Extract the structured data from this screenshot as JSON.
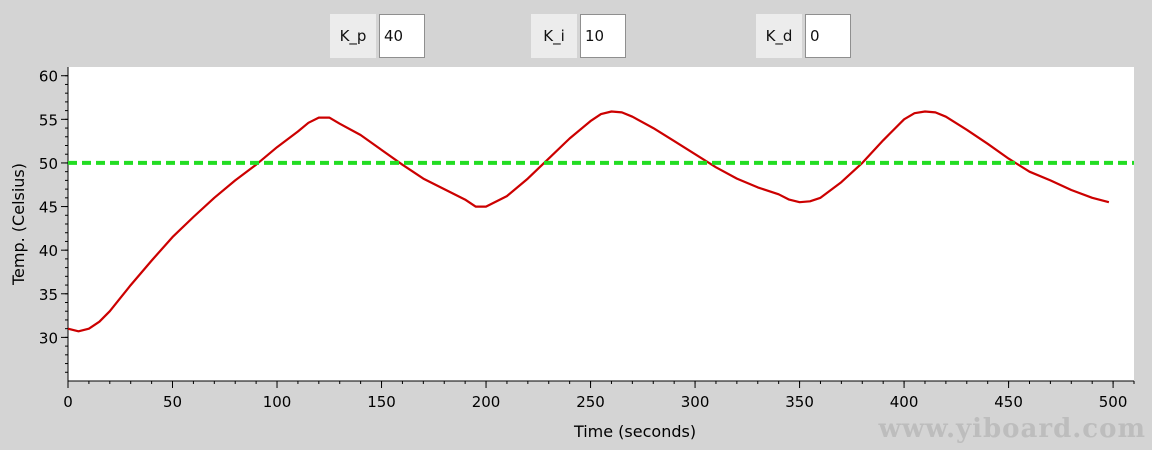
{
  "controls": [
    {
      "label": "K_p",
      "value": "40"
    },
    {
      "label": "K_i",
      "value": "10"
    },
    {
      "label": "K_d",
      "value": "0"
    }
  ],
  "watermark": "www.yiboard.com",
  "colors": {
    "background": "#d4d4d4",
    "plot_area": "#ffffff",
    "temperature": "#cc0000",
    "setpoint": "#22dd22"
  },
  "chart_data": {
    "type": "line",
    "title": "",
    "xlabel": "Time (seconds)",
    "ylabel": "Temp. (Celsius)",
    "xlim": [
      0,
      510
    ],
    "ylim": [
      25,
      61
    ],
    "xticks": [
      0,
      50,
      100,
      150,
      200,
      250,
      300,
      350,
      400,
      450,
      500
    ],
    "yticks": [
      30,
      35,
      40,
      45,
      50,
      55,
      60
    ],
    "grid": false,
    "series": [
      {
        "style": "solid",
        "color": "#cc0000",
        "x": [
          0,
          5,
          10,
          15,
          20,
          25,
          30,
          40,
          50,
          60,
          70,
          80,
          90,
          100,
          110,
          115,
          120,
          125,
          130,
          140,
          150,
          160,
          170,
          180,
          190,
          195,
          200,
          210,
          220,
          230,
          240,
          250,
          255,
          260,
          265,
          270,
          280,
          290,
          300,
          310,
          320,
          330,
          340,
          345,
          350,
          355,
          360,
          370,
          380,
          390,
          400,
          405,
          410,
          415,
          420,
          430,
          440,
          450,
          460,
          470,
          480,
          490,
          498
        ],
        "y": [
          31.0,
          30.7,
          31.0,
          31.8,
          33.0,
          34.5,
          36.0,
          38.8,
          41.5,
          43.8,
          46.0,
          48.0,
          49.8,
          51.8,
          53.6,
          54.6,
          55.2,
          55.2,
          54.5,
          53.2,
          51.5,
          49.8,
          48.2,
          47.0,
          45.8,
          45.0,
          45.0,
          46.2,
          48.2,
          50.5,
          52.8,
          54.8,
          55.6,
          55.9,
          55.8,
          55.3,
          54.0,
          52.5,
          51.0,
          49.5,
          48.2,
          47.2,
          46.4,
          45.8,
          45.5,
          45.6,
          46.0,
          47.8,
          50.0,
          52.6,
          55.0,
          55.7,
          55.9,
          55.8,
          55.3,
          53.8,
          52.2,
          50.5,
          49.0,
          48.0,
          46.9,
          46.0,
          45.5
        ]
      },
      {
        "style": "dashed",
        "color": "#22dd22",
        "x": [
          0,
          510
        ],
        "y": [
          50,
          50
        ]
      }
    ]
  }
}
